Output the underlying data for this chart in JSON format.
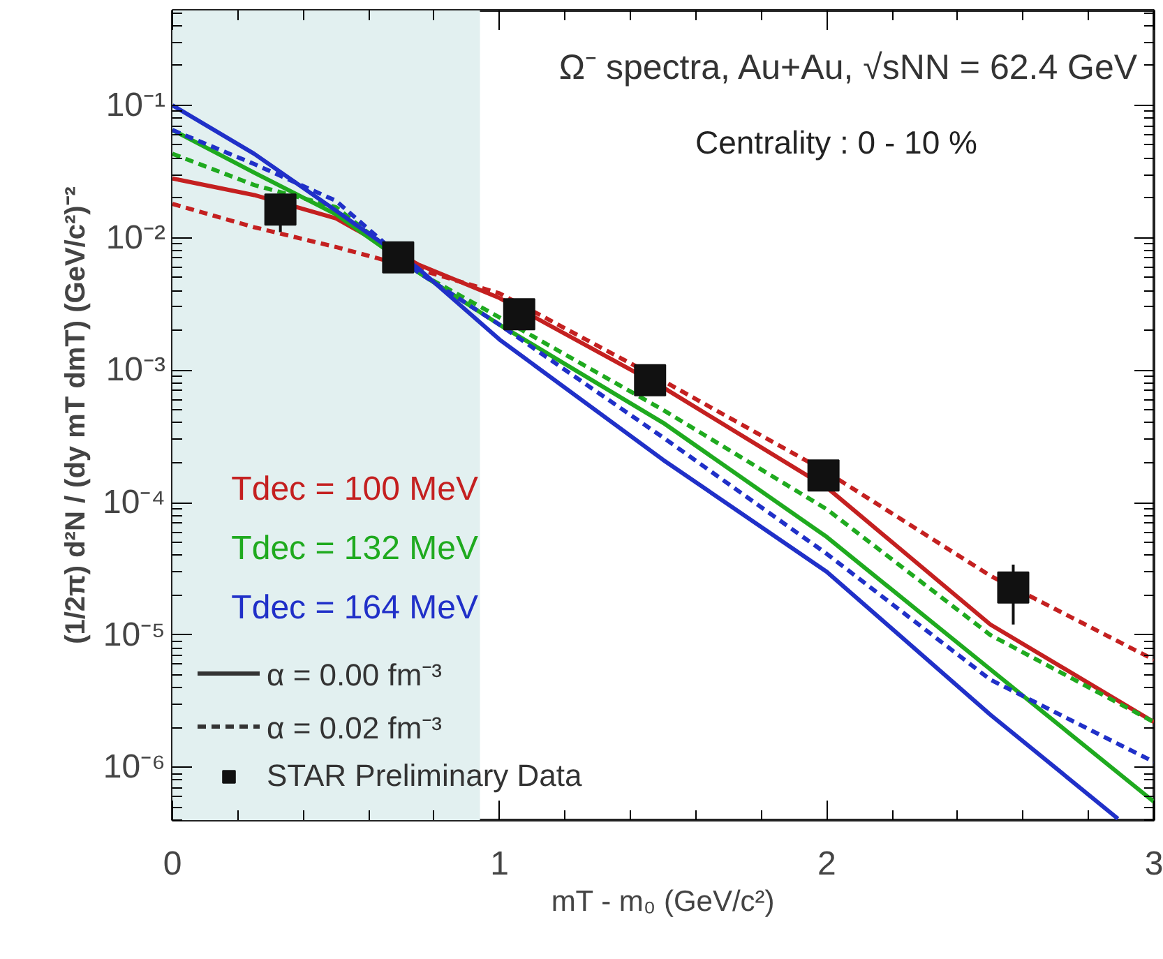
{
  "chart_data": {
    "type": "line",
    "title": "Ω⁻ spectra, Au+Au, √sNN = 62.4 GeV",
    "subtitle": "Centrality : 0 - 10 %",
    "xlabel": "mT - m₀ (GeV/c²)",
    "ylabel": "(1/2π) d²N / (dy mT dmT) (GeV/c²)⁻²",
    "log": "y",
    "grid": false,
    "legend": "bottom left",
    "xlim": [
      0,
      3
    ],
    "xticks": [
      0,
      1,
      2,
      3
    ],
    "ylim": [
      4e-07,
      0.52
    ],
    "yticks": [
      {
        "value": 1e-06,
        "label": "10⁻⁶"
      },
      {
        "value": 1e-05,
        "label": "10⁻⁵"
      },
      {
        "value": 0.0001,
        "label": "10⁻⁴"
      },
      {
        "value": 0.001,
        "label": "10⁻³"
      },
      {
        "value": 0.01,
        "label": "10⁻²"
      },
      {
        "value": 0.1,
        "label": "10⁻¹"
      }
    ],
    "bands": [
      {
        "axis": "x",
        "from": 0,
        "to": 0.94,
        "color": "#e2f0f0"
      }
    ],
    "annotations": [
      "Tdec = 100 MeV",
      "Tdec = 132 MeV",
      "Tdec = 164 MeV",
      "α = 0.00 fm⁻³",
      "α = 0.02 fm⁻³"
    ],
    "series": [
      {
        "color": "#c42020",
        "line_style": "solid",
        "x": [
          0,
          0.25,
          0.5,
          0.75,
          1,
          1.5,
          2,
          2.5,
          3
        ],
        "values": [
          0.028,
          0.021,
          0.014,
          0.0063,
          0.0035,
          0.00074,
          0.00013,
          1.2e-05,
          2.2e-06
        ]
      },
      {
        "color": "#c42020",
        "line_style": "dashed",
        "x": [
          0,
          0.25,
          0.5,
          0.75,
          1,
          1.5,
          2,
          2.5,
          3
        ],
        "values": [
          0.018,
          0.012,
          0.0085,
          0.0058,
          0.0038,
          0.00083,
          0.00017,
          2.8e-05,
          6.5e-06
        ]
      },
      {
        "color": "#1faa1f",
        "line_style": "solid",
        "x": [
          0,
          0.25,
          0.5,
          0.75,
          1,
          1.5,
          2,
          2.5,
          3
        ],
        "values": [
          0.065,
          0.031,
          0.015,
          0.0055,
          0.0022,
          0.0004,
          5.5e-05,
          5.5e-06,
          5.5e-07
        ]
      },
      {
        "color": "#1faa1f",
        "line_style": "dashed",
        "x": [
          0,
          0.25,
          0.5,
          0.75,
          1,
          1.5,
          2,
          2.5,
          3
        ],
        "values": [
          0.043,
          0.025,
          0.017,
          0.0055,
          0.0025,
          0.0005,
          8.9e-05,
          1e-05,
          2.2e-06
        ]
      },
      {
        "color": "#2030c8",
        "line_style": "solid",
        "x": [
          0,
          0.25,
          0.5,
          0.75,
          1,
          1.5,
          2,
          2.5,
          2.89
        ],
        "values": [
          0.1,
          0.043,
          0.016,
          0.0059,
          0.0017,
          0.00021,
          3e-05,
          2.5e-06,
          4.1e-07
        ]
      },
      {
        "color": "#2030c8",
        "line_style": "dashed",
        "x": [
          0,
          0.25,
          0.5,
          0.75,
          1,
          1.5,
          2,
          2.5,
          3
        ],
        "values": [
          0.065,
          0.036,
          0.019,
          0.0055,
          0.0022,
          0.00031,
          4.1e-05,
          4.6e-06,
          1.1e-06
        ]
      },
      {
        "type": "scatter",
        "name": "STAR Preliminary Data",
        "color": "#111111",
        "marker": "square",
        "x": [
          0.33,
          0.69,
          1.06,
          1.46,
          1.99,
          2.57
        ],
        "values": [
          0.0163,
          0.0071,
          0.00264,
          0.00084,
          0.00016,
          2.28e-05
        ],
        "errors": [
          [
            0.011,
            0.0163
          ],
          null,
          null,
          null,
          null,
          [
            1.2e-05,
            3.4e-05
          ]
        ]
      }
    ]
  }
}
